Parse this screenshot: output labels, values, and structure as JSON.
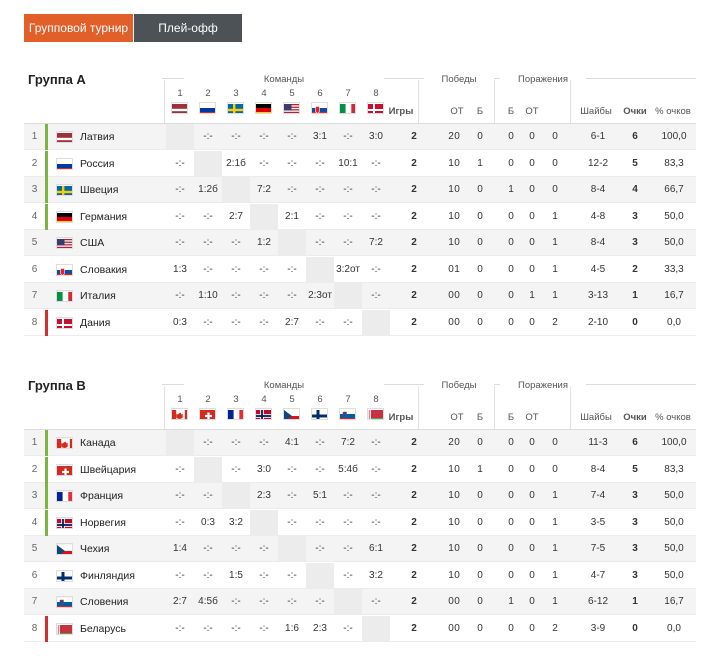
{
  "tabs": [
    {
      "label": "Групповой турнир",
      "active": true
    },
    {
      "label": "Плей-офф",
      "active": false
    }
  ],
  "headers": {
    "teams": "Команды",
    "games": "Игры",
    "wins": "Победы",
    "losses": "Поражения",
    "wins_ot": "ОТ",
    "wins_b": "Б",
    "losses_b": "Б",
    "losses_ot": "ОТ",
    "goals": "Шайбы",
    "points": "Очки",
    "pct": "% очков"
  },
  "colors": {
    "accent": "#e25f2a",
    "tab_dark": "#4d5256",
    "qualified": "#7cb342",
    "relegation": "#d32f2f"
  },
  "groups": [
    {
      "title": "Группа А",
      "teams": [
        {
          "pos": "1",
          "name": "Латвия",
          "flag": "latvia",
          "status": "qualified",
          "res": [
            "",
            "-:-",
            "-:-",
            "-:-",
            "-:-",
            "3:1",
            "-:-",
            "3:0"
          ],
          "games": "2",
          "w": "2",
          "wot": "0",
          "wb": "0",
          "lb": "0",
          "lot": "0",
          "l": "0",
          "goals": "6-1",
          "pts": "6",
          "pct": "100,0"
        },
        {
          "pos": "2",
          "name": "Россия",
          "flag": "russia",
          "status": "qualified",
          "res": [
            "-:-",
            "",
            "2:1б",
            "-:-",
            "-:-",
            "-:-",
            "10:1",
            "-:-"
          ],
          "games": "2",
          "w": "1",
          "wot": "0",
          "wb": "1",
          "lb": "0",
          "lot": "0",
          "l": "0",
          "goals": "12-2",
          "pts": "5",
          "pct": "83,3"
        },
        {
          "pos": "3",
          "name": "Швеция",
          "flag": "sweden",
          "status": "qualified",
          "res": [
            "-:-",
            "1:2б",
            "",
            "7:2",
            "-:-",
            "-:-",
            "-:-",
            "-:-"
          ],
          "games": "2",
          "w": "1",
          "wot": "0",
          "wb": "0",
          "lb": "1",
          "lot": "0",
          "l": "0",
          "goals": "8-4",
          "pts": "4",
          "pct": "66,7"
        },
        {
          "pos": "4",
          "name": "Германия",
          "flag": "germany",
          "status": "qualified",
          "res": [
            "-:-",
            "-:-",
            "2:7",
            "",
            "2:1",
            "-:-",
            "-:-",
            "-:-"
          ],
          "games": "2",
          "w": "1",
          "wot": "0",
          "wb": "0",
          "lb": "0",
          "lot": "0",
          "l": "1",
          "goals": "4-8",
          "pts": "3",
          "pct": "50,0"
        },
        {
          "pos": "5",
          "name": "США",
          "flag": "usa",
          "status": "",
          "res": [
            "-:-",
            "-:-",
            "-:-",
            "1:2",
            "",
            "-:-",
            "-:-",
            "7:2"
          ],
          "games": "2",
          "w": "1",
          "wot": "0",
          "wb": "0",
          "lb": "0",
          "lot": "0",
          "l": "1",
          "goals": "8-4",
          "pts": "3",
          "pct": "50,0"
        },
        {
          "pos": "6",
          "name": "Словакия",
          "flag": "slovakia",
          "status": "",
          "res": [
            "1:3",
            "-:-",
            "-:-",
            "-:-",
            "-:-",
            "",
            "3:2от",
            "-:-"
          ],
          "games": "2",
          "w": "0",
          "wot": "1",
          "wb": "0",
          "lb": "0",
          "lot": "0",
          "l": "1",
          "goals": "4-5",
          "pts": "2",
          "pct": "33,3"
        },
        {
          "pos": "7",
          "name": "Италия",
          "flag": "italy",
          "status": "",
          "res": [
            "-:-",
            "1:10",
            "-:-",
            "-:-",
            "-:-",
            "2:3от",
            "",
            "-:-"
          ],
          "games": "2",
          "w": "0",
          "wot": "0",
          "wb": "0",
          "lb": "0",
          "lot": "1",
          "l": "1",
          "goals": "3-13",
          "pts": "1",
          "pct": "16,7"
        },
        {
          "pos": "8",
          "name": "Дания",
          "flag": "denmark",
          "status": "relegation",
          "res": [
            "0:3",
            "-:-",
            "-:-",
            "-:-",
            "2:7",
            "-:-",
            "-:-",
            ""
          ],
          "games": "2",
          "w": "0",
          "wot": "0",
          "wb": "0",
          "lb": "0",
          "lot": "0",
          "l": "2",
          "goals": "2-10",
          "pts": "0",
          "pct": "0,0"
        }
      ]
    },
    {
      "title": "Группа В",
      "teams": [
        {
          "pos": "1",
          "name": "Канада",
          "flag": "canada",
          "status": "qualified",
          "res": [
            "",
            "-:-",
            "-:-",
            "-:-",
            "4:1",
            "-:-",
            "7:2",
            "-:-"
          ],
          "games": "2",
          "w": "2",
          "wot": "0",
          "wb": "0",
          "lb": "0",
          "lot": "0",
          "l": "0",
          "goals": "11-3",
          "pts": "6",
          "pct": "100,0"
        },
        {
          "pos": "2",
          "name": "Швейцария",
          "flag": "switzerland",
          "status": "qualified",
          "res": [
            "-:-",
            "",
            "-:-",
            "3:0",
            "-:-",
            "-:-",
            "5:4б",
            "-:-"
          ],
          "games": "2",
          "w": "1",
          "wot": "0",
          "wb": "1",
          "lb": "0",
          "lot": "0",
          "l": "0",
          "goals": "8-4",
          "pts": "5",
          "pct": "83,3"
        },
        {
          "pos": "3",
          "name": "Франция",
          "flag": "france",
          "status": "qualified",
          "res": [
            "-:-",
            "-:-",
            "",
            "2:3",
            "-:-",
            "5:1",
            "-:-",
            "-:-"
          ],
          "games": "2",
          "w": "1",
          "wot": "0",
          "wb": "0",
          "lb": "0",
          "lot": "0",
          "l": "1",
          "goals": "7-4",
          "pts": "3",
          "pct": "50,0"
        },
        {
          "pos": "4",
          "name": "Норвегия",
          "flag": "norway",
          "status": "qualified",
          "res": [
            "-:-",
            "0:3",
            "3:2",
            "",
            "-:-",
            "-:-",
            "-:-",
            "-:-"
          ],
          "games": "2",
          "w": "1",
          "wot": "0",
          "wb": "0",
          "lb": "0",
          "lot": "0",
          "l": "1",
          "goals": "3-5",
          "pts": "3",
          "pct": "50,0"
        },
        {
          "pos": "5",
          "name": "Чехия",
          "flag": "czech",
          "status": "",
          "res": [
            "1:4",
            "-:-",
            "-:-",
            "-:-",
            "",
            "-:-",
            "-:-",
            "6:1"
          ],
          "games": "2",
          "w": "1",
          "wot": "0",
          "wb": "0",
          "lb": "0",
          "lot": "0",
          "l": "1",
          "goals": "7-5",
          "pts": "3",
          "pct": "50,0"
        },
        {
          "pos": "6",
          "name": "Финляндия",
          "flag": "finland",
          "status": "",
          "res": [
            "-:-",
            "-:-",
            "1:5",
            "-:-",
            "-:-",
            "",
            "-:-",
            "3:2"
          ],
          "games": "2",
          "w": "1",
          "wot": "0",
          "wb": "0",
          "lb": "0",
          "lot": "0",
          "l": "1",
          "goals": "4-7",
          "pts": "3",
          "pct": "50,0"
        },
        {
          "pos": "7",
          "name": "Словения",
          "flag": "slovenia",
          "status": "",
          "res": [
            "2:7",
            "4:5б",
            "-:-",
            "-:-",
            "-:-",
            "-:-",
            "",
            "-:-"
          ],
          "games": "2",
          "w": "0",
          "wot": "0",
          "wb": "0",
          "lb": "1",
          "lot": "0",
          "l": "1",
          "goals": "6-12",
          "pts": "1",
          "pct": "16,7"
        },
        {
          "pos": "8",
          "name": "Беларусь",
          "flag": "belarus",
          "status": "relegation",
          "res": [
            "-:-",
            "-:-",
            "-:-",
            "-:-",
            "1:6",
            "2:3",
            "-:-",
            ""
          ],
          "games": "2",
          "w": "0",
          "wot": "0",
          "wb": "0",
          "lb": "0",
          "lot": "0",
          "l": "2",
          "goals": "3-9",
          "pts": "0",
          "pct": "0,0"
        }
      ]
    }
  ]
}
